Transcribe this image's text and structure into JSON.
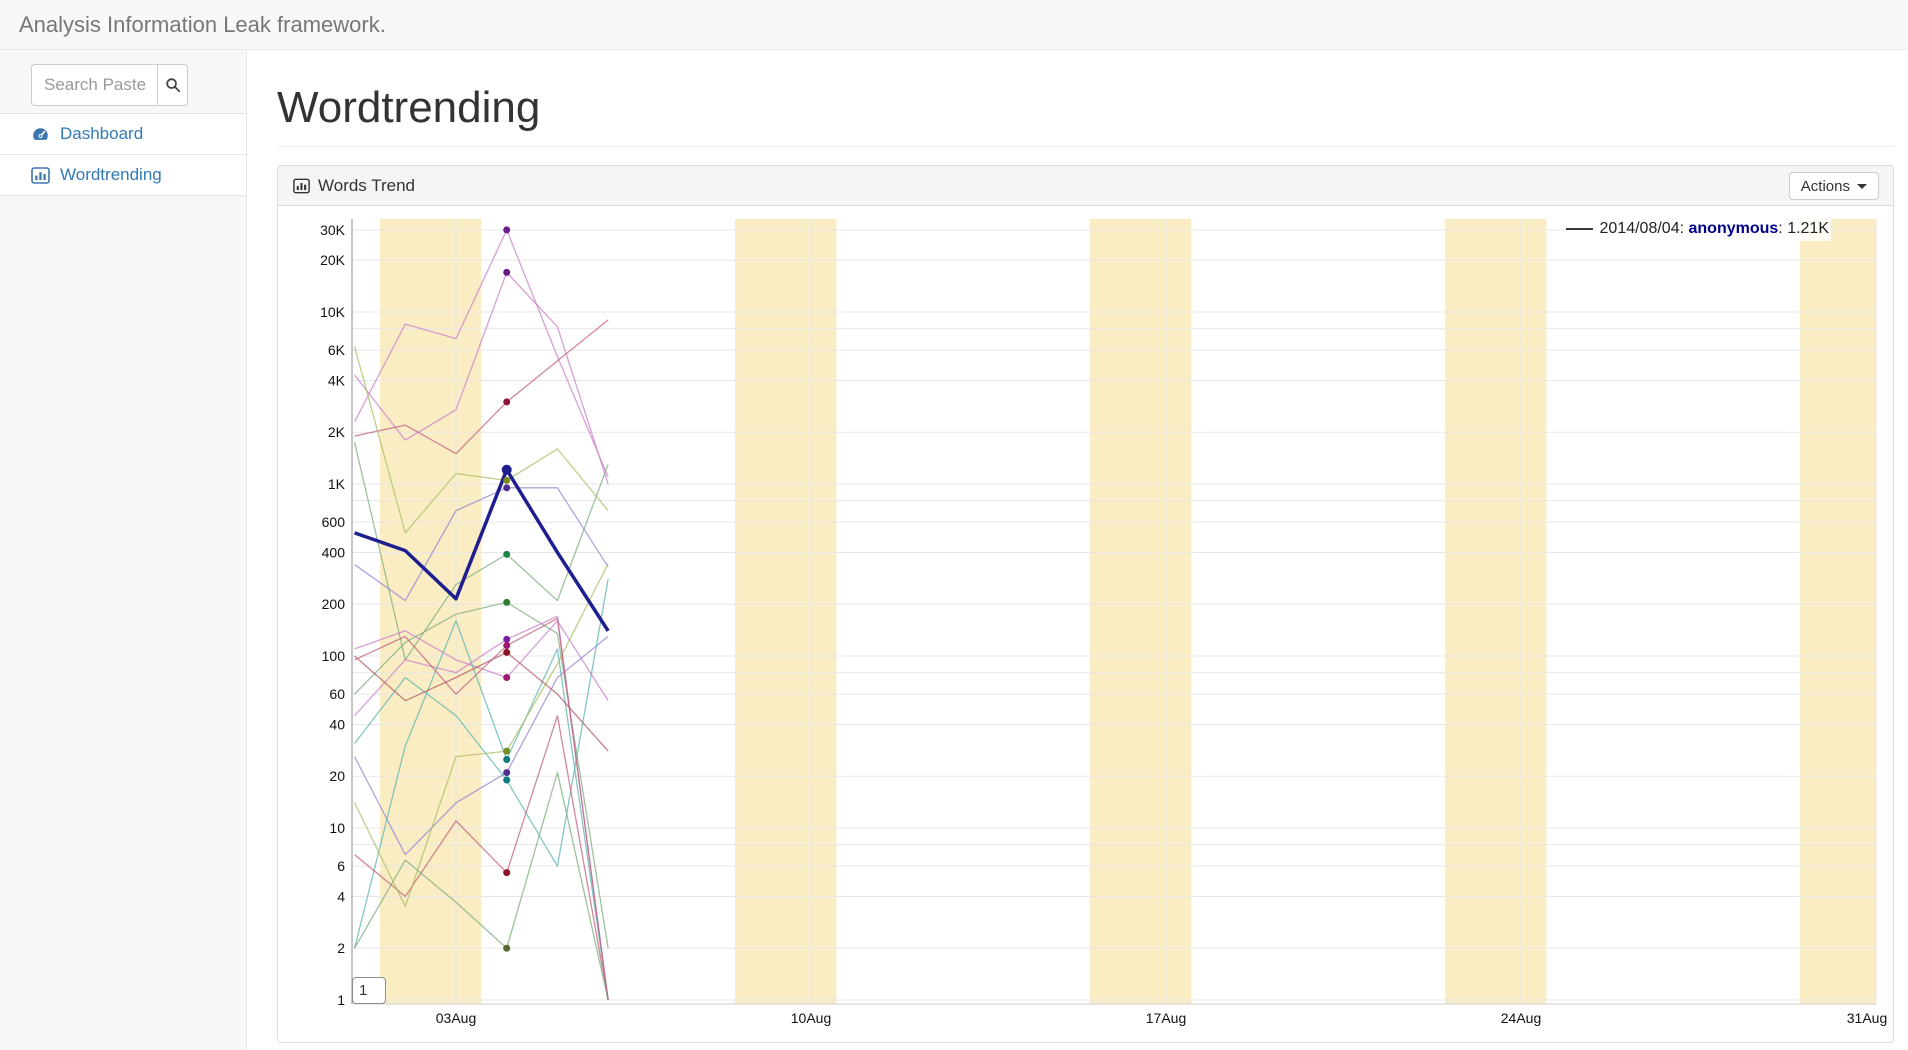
{
  "navbar": {
    "brand": "Analysis Information Leak framework."
  },
  "sidebar": {
    "search": {
      "placeholder": "Search Paste"
    },
    "items": [
      {
        "label": "Dashboard",
        "icon": "gauge-icon"
      },
      {
        "label": "Wordtrending",
        "icon": "bar-chart-icon"
      }
    ]
  },
  "page": {
    "title": "Wordtrending"
  },
  "panel": {
    "title": "Words Trend",
    "actions_label": "Actions"
  },
  "tooltip": {
    "date": "2014/08/04:",
    "name": "anonymous",
    "value": ": 1.21K"
  },
  "colors": {
    "link_blue": "#337ab7",
    "tooltip_name": "#00008b",
    "weekend_band": "#faedc4",
    "gridline": "#e7e7e7"
  },
  "chart_data": {
    "type": "line",
    "y_scale": "log",
    "ylim": [
      1,
      30000
    ],
    "x_unit": "day of August 2014",
    "x_days": [
      1,
      2,
      3,
      4,
      5,
      6
    ],
    "x_ticks": [
      {
        "day": 3,
        "label": "03Aug"
      },
      {
        "day": 10,
        "label": "10Aug"
      },
      {
        "day": 17,
        "label": "17Aug"
      },
      {
        "day": 24,
        "label": "24Aug"
      },
      {
        "day": 31,
        "label": "31Aug"
      }
    ],
    "y_ticks": [
      {
        "value": 30000,
        "label": "30K"
      },
      {
        "value": 20000,
        "label": "20K"
      },
      {
        "value": 10000,
        "label": "10K"
      },
      {
        "value": 6000,
        "label": "6K"
      },
      {
        "value": 4000,
        "label": "4K"
      },
      {
        "value": 2000,
        "label": "2K"
      },
      {
        "value": 1000,
        "label": "1K"
      },
      {
        "value": 600,
        "label": "600"
      },
      {
        "value": 400,
        "label": "400"
      },
      {
        "value": 200,
        "label": "200"
      },
      {
        "value": 100,
        "label": "100"
      },
      {
        "value": 60,
        "label": "60"
      },
      {
        "value": 40,
        "label": "40"
      },
      {
        "value": 20,
        "label": "20"
      },
      {
        "value": 10,
        "label": "10"
      },
      {
        "value": 6,
        "label": "6"
      },
      {
        "value": 4,
        "label": "4"
      },
      {
        "value": 2,
        "label": "2"
      },
      {
        "value": 1,
        "label": "1"
      }
    ],
    "grid_extra_values": [
      8,
      80,
      800,
      8000
    ],
    "weekend_bands": [
      [
        2,
        3
      ],
      [
        9,
        10
      ],
      [
        16,
        17
      ],
      [
        23,
        24
      ],
      [
        30,
        31
      ]
    ],
    "band_color": "#faedc4",
    "grid_color": "#e7e7e7",
    "highlight_day": 4,
    "overlay_box_label": "1",
    "series": [
      {
        "label": "",
        "color": "#c97fc9",
        "point": "#6a1b8a",
        "width": 1.3,
        "opacity": 0.75,
        "values": [
          2300,
          8500,
          7000,
          30000,
          5500,
          1100
        ]
      },
      {
        "label": "",
        "color": "#c97fc9",
        "point": "#6a1b8a",
        "width": 1.3,
        "opacity": 0.75,
        "values": [
          4300,
          1800,
          2700,
          17000,
          8200,
          1000
        ]
      },
      {
        "label": "",
        "color": "#c2607c",
        "point": "#8b1538",
        "width": 1.3,
        "opacity": 0.75,
        "values": [
          1900,
          2200,
          1500,
          3000,
          5200,
          9000
        ]
      },
      {
        "label": "",
        "color": "#abbe62",
        "point": "#7a8e1f",
        "width": 1.3,
        "opacity": 0.75,
        "values": [
          6300,
          520,
          1150,
          1050,
          1600,
          700
        ]
      },
      {
        "label": "",
        "color": "#7cae7c",
        "point": "#1e8449",
        "width": 1.3,
        "opacity": 0.75,
        "values": [
          1750,
          95,
          260,
          390,
          210,
          1300
        ]
      },
      {
        "label": "",
        "color": "#7cae7c",
        "point": "#2e7d32",
        "width": 1.3,
        "opacity": 0.75,
        "values": [
          60,
          120,
          175,
          205,
          135,
          2
        ]
      },
      {
        "label": "",
        "color": "#c97fc9",
        "point": "#7b1fa2",
        "width": 1.3,
        "opacity": 0.75,
        "values": [
          45,
          95,
          80,
          125,
          170,
          1
        ]
      },
      {
        "label": "",
        "color": "#9583cf",
        "point": "#4f2d91",
        "width": 1.3,
        "opacity": 0.75,
        "values": [
          340,
          210,
          700,
          950,
          950,
          330
        ]
      },
      {
        "label": "",
        "color": "#c97fc9",
        "point": "#9c1b6e",
        "width": 1.3,
        "opacity": 0.75,
        "values": [
          110,
          140,
          95,
          75,
          160,
          55
        ]
      },
      {
        "label": "",
        "color": "#9583cf",
        "point": "#4f2d91",
        "width": 1.3,
        "opacity": 0.75,
        "values": [
          26,
          7,
          14,
          21,
          75,
          130
        ]
      },
      {
        "label": "",
        "color": "#5bb3b0",
        "point": "#0b7b7b",
        "width": 1.3,
        "opacity": 0.75,
        "values": [
          2,
          30,
          160,
          25,
          110,
          1
        ]
      },
      {
        "label": "",
        "color": "#5bb3b0",
        "point": "#0b7b7b",
        "width": 1.3,
        "opacity": 0.75,
        "values": [
          31,
          75,
          45,
          19,
          6,
          280
        ]
      },
      {
        "label": "",
        "color": "#c2607c",
        "point": "#8b1528",
        "width": 1.3,
        "opacity": 0.75,
        "values": [
          7,
          4,
          11,
          5.5,
          45,
          1
        ]
      },
      {
        "label": "",
        "color": "#7cae7c",
        "point": "#556b2f",
        "width": 1.3,
        "opacity": 0.75,
        "values": [
          2,
          6.5,
          3.7,
          2,
          21,
          1
        ]
      },
      {
        "label": "",
        "color": "#abbe62",
        "point": "#7a8e1f",
        "width": 1.3,
        "opacity": 0.75,
        "values": [
          14,
          3.5,
          26,
          28,
          90,
          345
        ]
      },
      {
        "label": "",
        "color": "#c2607c",
        "point": "#9c1b6e",
        "width": 1.3,
        "opacity": 0.75,
        "values": [
          95,
          130,
          60,
          115,
          165,
          1
        ]
      },
      {
        "label": "",
        "color": "#b05a64",
        "point": "#8b1528",
        "width": 1.3,
        "opacity": 0.75,
        "values": [
          100,
          55,
          75,
          105,
          60,
          28
        ]
      },
      {
        "label": "anonymous",
        "color": "#1e1e8f",
        "point": "#1e1e8f",
        "width": 3.5,
        "opacity": 1,
        "point_r": 5,
        "values": [
          520,
          410,
          215,
          1210,
          400,
          140
        ]
      }
    ]
  }
}
